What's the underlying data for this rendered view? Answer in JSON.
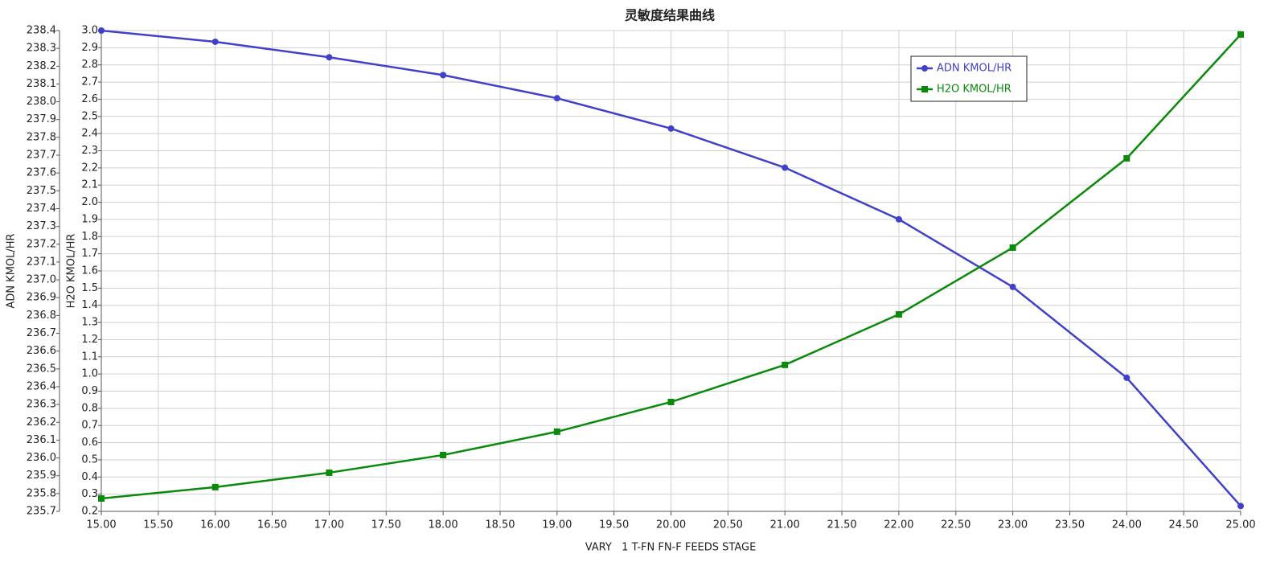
{
  "chart_data": {
    "type": "line",
    "title": "灵敏度结果曲线",
    "x_label": "VARY   1 T-FN FN-F FEEDS STAGE",
    "y_label": "ADN KMOL/HR",
    "y2_label": "H2O KMOL/HR",
    "x": [
      15,
      16,
      17,
      18,
      19,
      20,
      21,
      22,
      23,
      24,
      25
    ],
    "series": [
      {
        "name": "ADN KMOL/HR",
        "color": "#4040c8",
        "marker": "circle",
        "axis": "y",
        "values": [
          238.4,
          238.337,
          238.25,
          238.15,
          238.02,
          237.85,
          237.63,
          237.34,
          236.96,
          236.45,
          235.73
        ]
      },
      {
        "name": "H2O KMOL/HR",
        "color": "#0a8a0a",
        "marker": "square",
        "axis": "y2",
        "values": [
          0.275,
          0.341,
          0.425,
          0.528,
          0.664,
          0.837,
          1.053,
          1.347,
          1.736,
          2.256,
          2.977
        ]
      }
    ],
    "xlim": [
      15,
      25
    ],
    "xticks": [
      {
        "value": 15,
        "label": "15.00"
      },
      {
        "value": 15.5,
        "label": "15.50"
      },
      {
        "value": 16,
        "label": "16.00"
      },
      {
        "value": 16.5,
        "label": "16.50"
      },
      {
        "value": 17,
        "label": "17.00"
      },
      {
        "value": 17.5,
        "label": "17.50"
      },
      {
        "value": 18,
        "label": "18.00"
      },
      {
        "value": 18.5,
        "label": "18.50"
      },
      {
        "value": 19,
        "label": "19.00"
      },
      {
        "value": 19.5,
        "label": "19.50"
      },
      {
        "value": 20,
        "label": "20.00"
      },
      {
        "value": 20.5,
        "label": "20.50"
      },
      {
        "value": 21,
        "label": "21.00"
      },
      {
        "value": 21.5,
        "label": "21.50"
      },
      {
        "value": 22,
        "label": "22.00"
      },
      {
        "value": 22.5,
        "label": "22.50"
      },
      {
        "value": 23,
        "label": "23.00"
      },
      {
        "value": 23.5,
        "label": "23.50"
      },
      {
        "value": 24,
        "label": "24.00"
      },
      {
        "value": 24.5,
        "label": "24.50"
      },
      {
        "value": 25,
        "label": "25.00"
      }
    ],
    "ylim": [
      235.7,
      238.4
    ],
    "yticks": [
      235.7,
      235.8,
      235.9,
      {
        "value": 236,
        "label": "236.0"
      },
      236.1,
      236.2,
      236.3,
      236.4,
      236.5,
      236.6,
      236.7,
      236.8,
      236.9,
      {
        "value": 237,
        "label": "237.0"
      },
      237.1,
      237.2,
      237.3,
      237.4,
      237.5,
      237.6,
      237.7,
      237.8,
      237.9,
      {
        "value": 238,
        "label": "238.0"
      },
      238.1,
      238.2,
      238.3,
      238.4
    ],
    "y2lim": [
      0.2,
      3.0
    ],
    "y2ticks": [
      0.2,
      0.3,
      0.4,
      0.5,
      0.6,
      0.7,
      0.8,
      0.9,
      {
        "value": 1,
        "label": "1.0"
      },
      1.1,
      1.2,
      1.3,
      1.4,
      1.5,
      1.6,
      1.7,
      1.8,
      1.9,
      {
        "value": 2,
        "label": "2.0"
      },
      2.1,
      2.2,
      2.3,
      2.4,
      2.5,
      2.6,
      2.7,
      2.8,
      2.9,
      {
        "value": 3,
        "label": "3.0"
      }
    ],
    "grid": true,
    "legend": "upper right"
  }
}
